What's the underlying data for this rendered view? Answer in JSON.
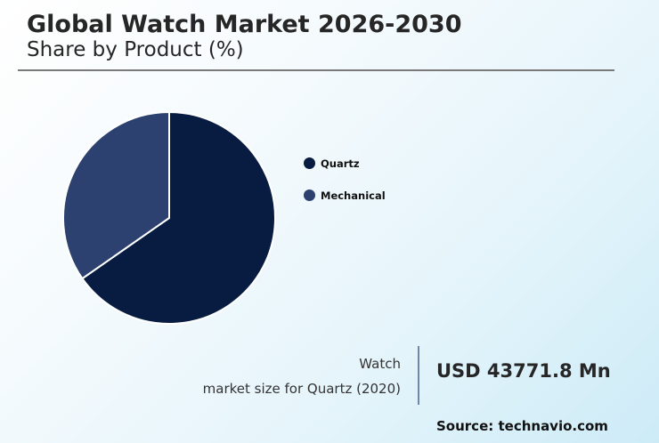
{
  "header": {
    "title": "Global Watch Market 2026-2030",
    "subtitle": "Share by Product (%)"
  },
  "legend": {
    "items": [
      {
        "label": "Quartz",
        "color": "#081c42"
      },
      {
        "label": "Mechanical",
        "color": "#2c416f"
      }
    ]
  },
  "stat": {
    "label_line1": "Watch",
    "label_line2": "market size for Quartz (2020)",
    "value": "USD 43771.8 Mn"
  },
  "footer": {
    "source": "Source: technavio.com"
  },
  "chart_data": {
    "type": "pie",
    "title": "Global Watch Market 2026-2030",
    "subtitle": "Share by Product (%)",
    "categories": [
      "Quartz",
      "Mechanical"
    ],
    "values": [
      65.3,
      34.7
    ],
    "colors": [
      "#081c42",
      "#2c416f"
    ],
    "start_angle": "12 o'clock, clockwise",
    "legend_position": "right",
    "annotation": "Watch market size for Quartz (2020): USD 43771.8 Mn"
  }
}
